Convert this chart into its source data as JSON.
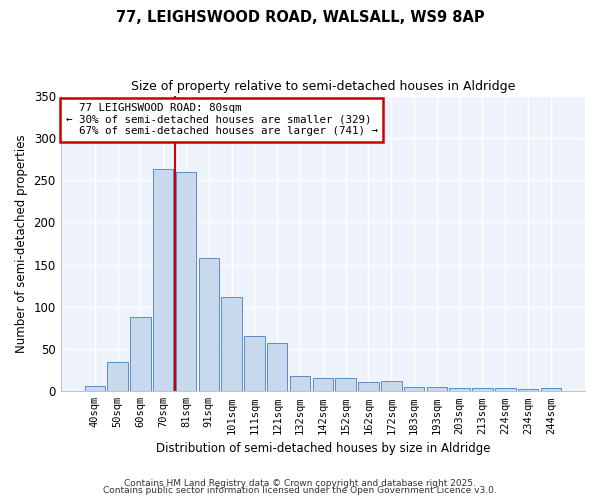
{
  "title1": "77, LEIGHSWOOD ROAD, WALSALL, WS9 8AP",
  "title2": "Size of property relative to semi-detached houses in Aldridge",
  "xlabel": "Distribution of semi-detached houses by size in Aldridge",
  "ylabel": "Number of semi-detached properties",
  "categories": [
    "40sqm",
    "50sqm",
    "60sqm",
    "70sqm",
    "81sqm",
    "91sqm",
    "101sqm",
    "111sqm",
    "121sqm",
    "132sqm",
    "142sqm",
    "152sqm",
    "162sqm",
    "172sqm",
    "183sqm",
    "193sqm",
    "203sqm",
    "213sqm",
    "224sqm",
    "234sqm",
    "244sqm"
  ],
  "values": [
    6,
    35,
    88,
    263,
    260,
    158,
    112,
    65,
    57,
    18,
    16,
    16,
    11,
    12,
    5,
    5,
    4,
    4,
    4,
    3,
    4
  ],
  "bar_color": "#c8d9ed",
  "bar_edge_color": "#5b8dc8",
  "property_line_x": 3.5,
  "property_line_label": "77 LEIGHSWOOD ROAD: 80sqm",
  "smaller_pct": "30%",
  "smaller_count": "329",
  "larger_pct": "67%",
  "larger_count": "741",
  "ylim": [
    0,
    350
  ],
  "yticks": [
    0,
    50,
    100,
    150,
    200,
    250,
    300,
    350
  ],
  "annotation_box_color": "#ffffff",
  "annotation_box_edge": "#cc0000",
  "property_line_color": "#cc0000",
  "background_color": "#ffffff",
  "plot_bg_color": "#eef3fb",
  "footer1": "Contains HM Land Registry data © Crown copyright and database right 2025.",
  "footer2": "Contains public sector information licensed under the Open Government Licence v3.0."
}
